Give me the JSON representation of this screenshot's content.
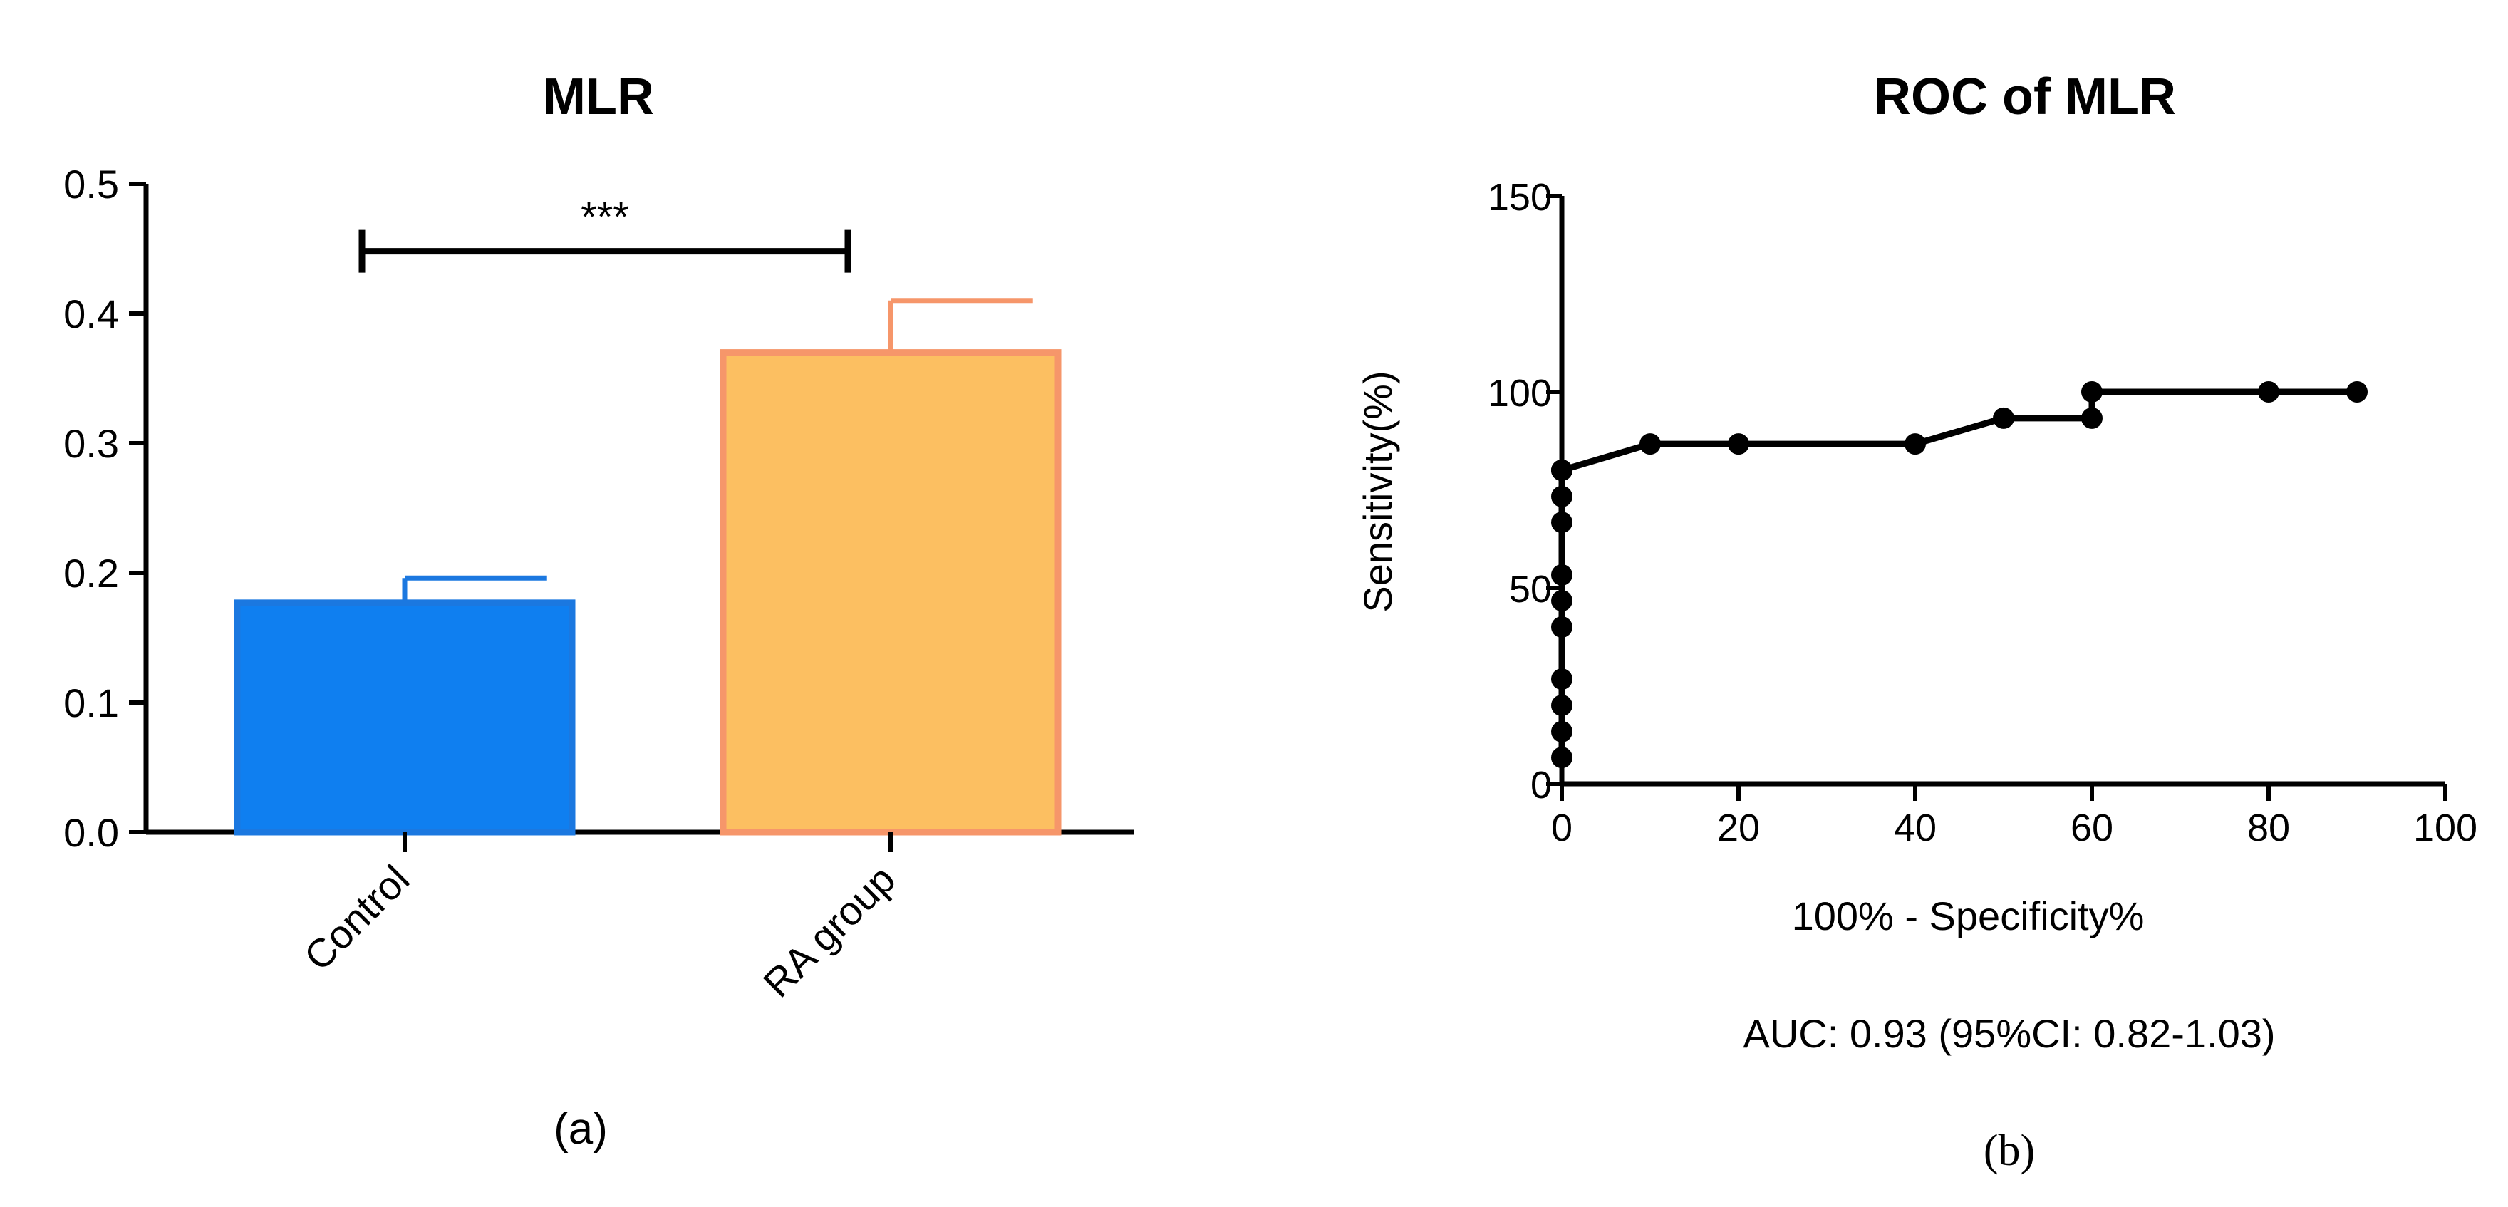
{
  "chart_data": [
    {
      "type": "bar",
      "title": "MLR",
      "categories": [
        "Control",
        "RA group"
      ],
      "values": [
        0.177,
        0.37
      ],
      "errors": [
        0.019,
        0.04
      ],
      "ylim": [
        0,
        0.5
      ],
      "yticks": [
        "0.0",
        "0.1",
        "0.2",
        "0.3",
        "0.4",
        "0.5"
      ],
      "ytick_values": [
        0,
        0.1,
        0.2,
        0.3,
        0.4,
        0.5
      ],
      "xlabel": "",
      "ylabel": "",
      "significance": {
        "label": "***",
        "between": [
          0,
          1
        ],
        "y": 0.448
      },
      "colors": {
        "fill": [
          "#0f7ff0",
          "#fcbf61"
        ],
        "edge": [
          "#1b78e0",
          "#f6966a"
        ]
      },
      "panel_label": "(a)"
    },
    {
      "type": "line",
      "title": "ROC of MLR",
      "xlabel": "100% - Specificity%",
      "ylabel": "Sensitivity(%)",
      "xlim": [
        0,
        100
      ],
      "ylim": [
        0,
        150
      ],
      "xticks": [
        "0",
        "20",
        "40",
        "60",
        "80",
        "100"
      ],
      "xtick_values": [
        0,
        20,
        40,
        60,
        80,
        100
      ],
      "yticks": [
        "0",
        "50",
        "100",
        "150"
      ],
      "ytick_values": [
        0,
        50,
        100,
        150
      ],
      "x": [
        0,
        0,
        0,
        0,
        0,
        0,
        0,
        0,
        0,
        0,
        0,
        0,
        10,
        20,
        40,
        50,
        60,
        60,
        80,
        90
      ],
      "y": [
        6.7,
        13.3,
        20,
        26.7,
        40,
        46.7,
        53.3,
        66.7,
        73.3,
        80,
        80,
        80,
        86.7,
        86.7,
        86.7,
        93.3,
        93.3,
        100,
        100,
        100
      ],
      "annotation": "AUC: 0.93 (95%CI: 0.82-1.03)",
      "colors": {
        "line": "#000000"
      },
      "panel_label": "(b)"
    }
  ]
}
